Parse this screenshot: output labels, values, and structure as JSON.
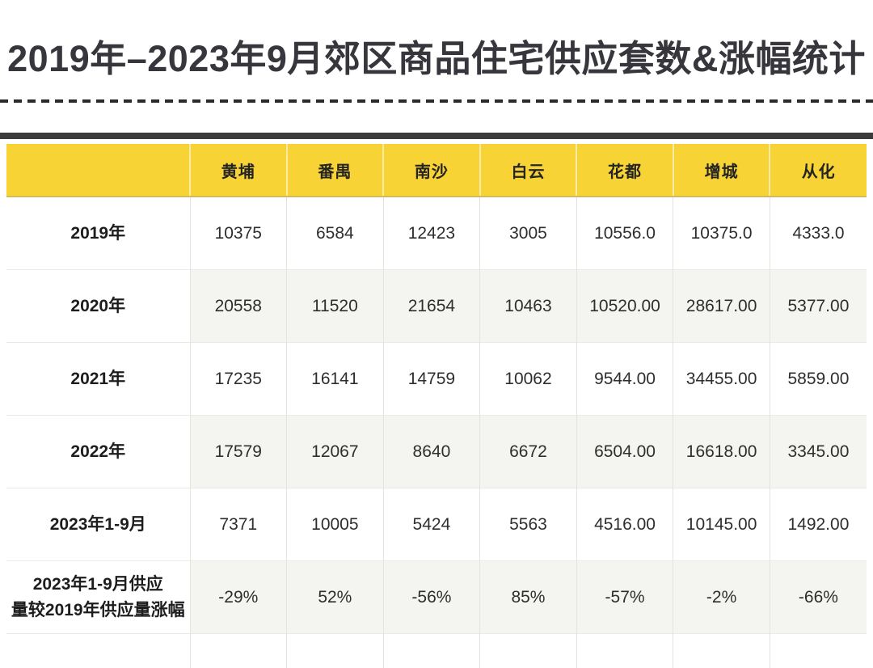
{
  "page": {
    "title": "2019年–2023年9月郊区商品住宅供应套数&涨幅统计"
  },
  "chart_data": {
    "type": "table",
    "title": "2019年–2023年9月郊区商品住宅供应套数&涨幅统计",
    "columns": [
      "黄埔",
      "番禺",
      "南沙",
      "白云",
      "花都",
      "增城",
      "从化"
    ],
    "rows": [
      {
        "label": "2019年",
        "shaded": false,
        "values": [
          "10375",
          "6584",
          "12423",
          "3005",
          "10556.0",
          "10375.0",
          "4333.0"
        ]
      },
      {
        "label": "2020年",
        "shaded": true,
        "values": [
          "20558",
          "11520",
          "21654",
          "10463",
          "10520.00",
          "28617.00",
          "5377.00"
        ]
      },
      {
        "label": "2021年",
        "shaded": false,
        "values": [
          "17235",
          "16141",
          "14759",
          "10062",
          "9544.00",
          "34455.00",
          "5859.00"
        ]
      },
      {
        "label": "2022年",
        "shaded": true,
        "values": [
          "17579",
          "12067",
          "8640",
          "6672",
          "6504.00",
          "16618.00",
          "3345.00"
        ]
      },
      {
        "label": "2023年1-9月",
        "shaded": false,
        "values": [
          "7371",
          "10005",
          "5424",
          "5563",
          "4516.00",
          "10145.00",
          "1492.00"
        ]
      },
      {
        "label": "2023年1-9月供应\n量较2019年供应量涨幅",
        "shaded": true,
        "values": [
          "-29%",
          "52%",
          "-56%",
          "85%",
          "-57%",
          "-2%",
          "-66%"
        ]
      }
    ]
  },
  "colors": {
    "header_bg": "#F7D335",
    "header_border": "#D5BB58",
    "shaded_row_bg": "#F4F4F1",
    "divider_dark": "#3B3B3B",
    "dashed_rule": "#2B2B2B",
    "title_color": "#36363C"
  }
}
